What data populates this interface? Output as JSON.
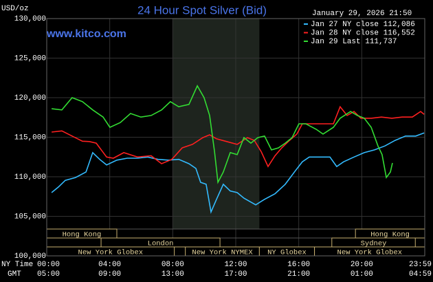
{
  "chart_data": {
    "type": "line",
    "title": "24 Hour Spot Silver (Bid)",
    "subtitle": "January 29, 2026 21:50",
    "watermark": "www.kitco.com",
    "ylabel": "USD/oz",
    "xlabel": "NY Time",
    "x2label": "GMT",
    "xlim": [
      0,
      24
    ],
    "ylim": [
      100000,
      130000
    ],
    "yticks": [
      {
        "value": 100000,
        "label": "100,000"
      },
      {
        "value": 105000,
        "label": "105,000"
      },
      {
        "value": 110000,
        "label": "110,000"
      },
      {
        "value": 115000,
        "label": "115,000"
      },
      {
        "value": 120000,
        "label": "120,000"
      },
      {
        "value": 125000,
        "label": "125,000"
      },
      {
        "value": 130000,
        "label": "130,000"
      }
    ],
    "xticks": [
      {
        "value": 0,
        "label": "00:00"
      },
      {
        "value": 4,
        "label": "04:00"
      },
      {
        "value": 8,
        "label": "08:00"
      },
      {
        "value": 12,
        "label": "12:00"
      },
      {
        "value": 16,
        "label": "16:00"
      },
      {
        "value": 20,
        "label": "20:00"
      },
      {
        "value": 24,
        "label": "23:59"
      }
    ],
    "x2ticklabels": [
      "05:00",
      "09:00",
      "13:00",
      "17:00",
      "21:00",
      "01:00",
      "04:59"
    ],
    "grid": true,
    "highlight_range": [
      8,
      13.5
    ],
    "sessions": [
      {
        "name": "Hong Kong",
        "start": 0,
        "end": 4.45,
        "lane": 0
      },
      {
        "name": "Hong Kong",
        "start": 19.6,
        "end": 24,
        "lane": 0
      },
      {
        "name": "London",
        "start": 3.45,
        "end": 11,
        "lane": 1
      },
      {
        "name": "Sydney",
        "start": 18.1,
        "end": 23.4,
        "lane": 1
      },
      {
        "name": "New York Globex",
        "start": 0,
        "end": 8.1,
        "lane": 2
      },
      {
        "name": "New York NYMEX",
        "start": 8.8,
        "end": 13.5,
        "lane": 2
      },
      {
        "name": "NY Globex",
        "start": 13.5,
        "end": 17,
        "lane": 2
      },
      {
        "name": "New York Globex",
        "start": 17,
        "end": 24,
        "lane": 2
      }
    ],
    "series": [
      {
        "name": "Jan 27 NY close 112,086",
        "color": "#33bbff",
        "x": [
          0.31,
          0.74,
          1.18,
          1.83,
          2.49,
          2.92,
          3.36,
          3.8,
          4.45,
          5.11,
          5.76,
          6.41,
          7.07,
          7.72,
          8.38,
          9.03,
          9.47,
          9.77,
          10.12,
          10.43,
          10.78,
          11.21,
          11.65,
          12.09,
          12.52,
          12.96,
          13.27,
          13.83,
          14.49,
          15.14,
          15.8,
          16.23,
          16.67,
          17.32,
          17.98,
          18.41,
          18.85,
          19.51,
          20.16,
          20.81,
          21.47,
          22.12,
          22.78,
          23.43,
          23.96
        ],
        "values": [
          108000,
          108700,
          109550,
          109900,
          110600,
          113050,
          112200,
          111500,
          112100,
          112350,
          112350,
          112500,
          112200,
          112100,
          112200,
          111650,
          111050,
          109300,
          109050,
          105550,
          107150,
          109050,
          108200,
          108000,
          107300,
          106800,
          106450,
          107150,
          107850,
          109050,
          110800,
          111900,
          112500,
          112500,
          112500,
          111300,
          111900,
          112500,
          113050,
          113400,
          113900,
          114600,
          115150,
          115150,
          115550
        ]
      },
      {
        "name": "Jan 28 NY close 116,552",
        "color": "#ff2020",
        "x": [
          0.31,
          0.96,
          1.61,
          2.27,
          2.71,
          3.14,
          3.8,
          4.23,
          4.89,
          5.76,
          6.63,
          7.29,
          7.94,
          8.6,
          9.25,
          9.91,
          10.34,
          10.78,
          11.43,
          12.09,
          12.74,
          13.18,
          13.61,
          14.05,
          14.49,
          14.92,
          15.36,
          15.88,
          16.23,
          16.89,
          17.54,
          18.2,
          18.63,
          19.07,
          19.51,
          19.94,
          20.6,
          21.25,
          21.91,
          22.56,
          23.21,
          23.74,
          23.96
        ],
        "values": [
          115650,
          115800,
          115150,
          114500,
          114450,
          114250,
          112500,
          112350,
          113050,
          112500,
          112650,
          111650,
          112200,
          113650,
          114100,
          114950,
          115300,
          114800,
          114450,
          114100,
          114950,
          114600,
          113200,
          111300,
          112650,
          113650,
          114500,
          115400,
          116700,
          116700,
          116700,
          116700,
          118850,
          117750,
          118250,
          117400,
          117400,
          117550,
          117400,
          117550,
          117550,
          118250,
          117900
        ]
      },
      {
        "name": "Jan 29 Last 111,737",
        "color": "#33dd33",
        "x": [
          0.31,
          0.96,
          1.61,
          2.27,
          2.92,
          3.58,
          4.01,
          4.67,
          5.32,
          5.98,
          6.63,
          7.29,
          7.85,
          8.38,
          9.03,
          9.56,
          9.99,
          10.34,
          10.65,
          10.87,
          11.21,
          11.65,
          12.09,
          12.52,
          12.96,
          13.4,
          13.83,
          14.27,
          14.71,
          15.14,
          15.58,
          16.01,
          16.45,
          17.11,
          17.54,
          18.2,
          18.63,
          19.29,
          19.72,
          20.16,
          20.6,
          21.03,
          21.29,
          21.56,
          21.82,
          21.95
        ],
        "values": [
          118600,
          118450,
          120000,
          119500,
          118450,
          117550,
          116250,
          116850,
          118000,
          117550,
          117750,
          118450,
          119500,
          118850,
          119150,
          121500,
          120000,
          117750,
          113200,
          109300,
          110600,
          113050,
          112800,
          114950,
          114250,
          114950,
          115150,
          113400,
          113650,
          114250,
          114950,
          116700,
          116700,
          116000,
          115400,
          116250,
          117400,
          118250,
          117750,
          117400,
          116250,
          113900,
          112800,
          109900,
          110600,
          111750
        ]
      }
    ]
  }
}
